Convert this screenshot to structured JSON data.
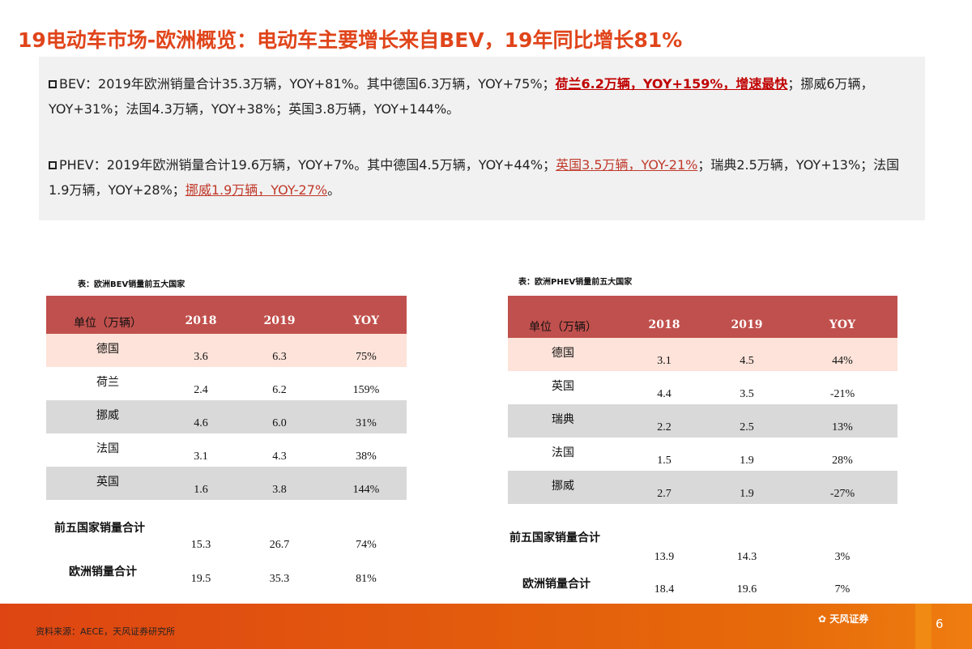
{
  "title": "19电动车市场-欧洲概览：电动车主要增长来自BEV，19年同比增长81%",
  "summary": {
    "bev": {
      "a": "BEV：2019年欧洲销量合计35.3万辆，YOY+81%。其中德国6.3万辆，YOY+75%；",
      "hl": "荷兰6.2万辆，YOY+159%，增速最快",
      "b": "；挪威6万辆，YOY+31%；法国4.3万辆，YOY+38%；英国3.8万辆，YOY+144%。"
    },
    "phev": {
      "a": "PHEV：2019年欧洲销量合计19.6万辆，YOY+7%。其中德国4.5万辆，YOY+44%；",
      "hl1": "英国3.5万辆，YOY-21%",
      "b": "；瑞典2.5万辆，YOY+13%；法国1.9万辆，YOY+28%；",
      "hl2": "挪威1.9万辆，YOY-27%",
      "c": "。"
    }
  },
  "bev_table": {
    "title": "表：欧洲BEV销量前五大国家",
    "headers": [
      "单位（万辆）",
      "2018",
      "2019",
      "YOY"
    ],
    "rows": [
      [
        "德国",
        "3.6",
        "6.3",
        "75%"
      ],
      [
        "荷兰",
        "2.4",
        "6.2",
        "159%"
      ],
      [
        "挪威",
        "4.6",
        "6.0",
        "31%"
      ],
      [
        "法国",
        "3.1",
        "4.3",
        "38%"
      ],
      [
        "英国",
        "1.6",
        "3.8",
        "144%"
      ]
    ],
    "totals": [
      [
        "前五国家销量合计",
        "15.3",
        "26.7",
        "74%"
      ],
      [
        "欧洲销量合计",
        "19.5",
        "35.3",
        "81%"
      ]
    ]
  },
  "phev_table": {
    "title": "表：欧洲PHEV销量前五大国家",
    "headers": [
      "单位（万辆）",
      "2018",
      "2019",
      "YOY"
    ],
    "rows": [
      [
        "德国",
        "3.1",
        "4.5",
        "44%"
      ],
      [
        "英国",
        "4.4",
        "3.5",
        "-21%"
      ],
      [
        "瑞典",
        "2.2",
        "2.5",
        "13%"
      ],
      [
        "法国",
        "1.5",
        "1.9",
        "28%"
      ],
      [
        "挪威",
        "2.7",
        "1.9",
        "-27%"
      ]
    ],
    "totals": [
      [
        "前五国家销量合计",
        "13.9",
        "14.3",
        "3%"
      ],
      [
        "欧洲销量合计",
        "18.4",
        "19.6",
        "7%"
      ]
    ]
  },
  "colors": {
    "header": "#c0504d",
    "row_highlight": "#fde3d9",
    "row_gray": "#d9d9d9",
    "title": "#e0451b"
  },
  "footer": {
    "source": "资料来源：AECE，天风证券研究所",
    "logo": "天风证券",
    "page": "6"
  }
}
